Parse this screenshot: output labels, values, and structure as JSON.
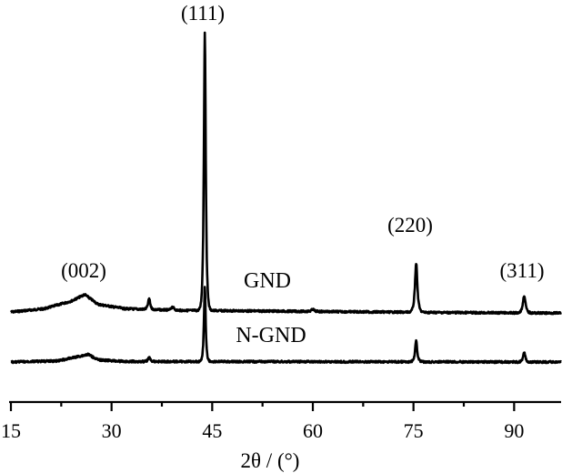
{
  "chart_data": {
    "type": "line",
    "title": "",
    "xlabel": "2θ / (°)",
    "ylabel": "",
    "xlim": [
      15,
      97
    ],
    "x_ticks": [
      "15",
      "30",
      "45",
      "60",
      "75",
      "90"
    ],
    "x_tick_values": [
      15,
      30,
      45,
      60,
      75,
      90
    ],
    "y_ticks_shown": false,
    "grid": false,
    "peak_labels": [
      {
        "text": "(002)",
        "x": 26
      },
      {
        "text": "(111)",
        "x": 43.9
      },
      {
        "text": "(220)",
        "x": 75.4
      },
      {
        "text": "(311)",
        "x": 91.5
      }
    ],
    "series": [
      {
        "name": "GND",
        "baseline": [
          [
            15,
            0.0
          ],
          [
            20,
            0.03
          ],
          [
            24,
            0.1
          ],
          [
            26,
            0.16
          ],
          [
            28,
            0.07
          ],
          [
            32,
            0.03
          ],
          [
            40,
            0.015
          ],
          [
            50,
            0.01
          ],
          [
            60,
            0.005
          ],
          [
            70,
            0.0
          ],
          [
            80,
            -0.005
          ],
          [
            97,
            -0.01
          ]
        ],
        "peaks": [
          {
            "x": 35.6,
            "height": 0.1,
            "width": 0.25
          },
          {
            "x": 39.1,
            "height": 0.03,
            "width": 0.3
          },
          {
            "x": 43.9,
            "height": 2.55,
            "width": 0.22
          },
          {
            "x": 60.0,
            "height": 0.02,
            "width": 0.3
          },
          {
            "x": 75.4,
            "height": 0.45,
            "width": 0.28
          },
          {
            "x": 91.5,
            "height": 0.16,
            "width": 0.3
          }
        ]
      },
      {
        "name": "N-GND",
        "baseline": [
          [
            15,
            0.0
          ],
          [
            22,
            0.01
          ],
          [
            25,
            0.05
          ],
          [
            26.5,
            0.07
          ],
          [
            28,
            0.02
          ],
          [
            32,
            0.005
          ],
          [
            97,
            0.0
          ]
        ],
        "peaks": [
          {
            "x": 35.6,
            "height": 0.04,
            "width": 0.25
          },
          {
            "x": 43.9,
            "height": 0.68,
            "width": 0.2
          },
          {
            "x": 75.4,
            "height": 0.19,
            "width": 0.25
          },
          {
            "x": 91.5,
            "height": 0.09,
            "width": 0.25
          }
        ]
      }
    ]
  }
}
